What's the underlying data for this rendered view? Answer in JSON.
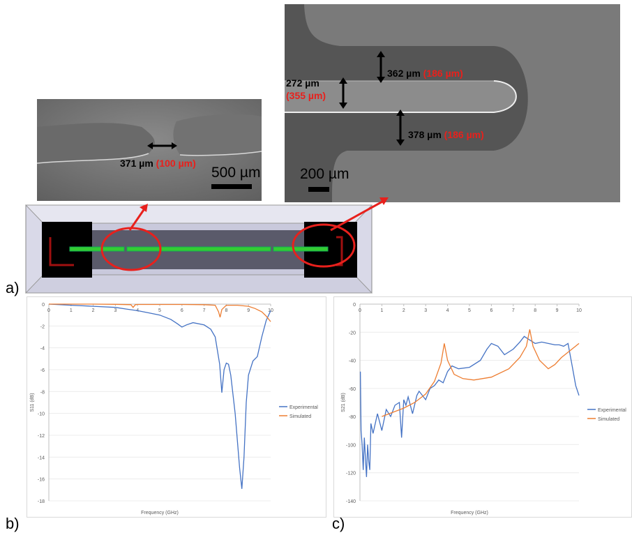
{
  "panel_labels": {
    "a": "a)",
    "b": "b)",
    "c": "c)"
  },
  "sem_left": {
    "gap_measure": "371 µm",
    "gap_design": "(100 µm)",
    "scale_bar": "500 µm"
  },
  "sem_right": {
    "top_measure": "362 µm",
    "top_design": "(186 µm)",
    "mid_measure": "272 µm",
    "mid_design": "(355 µm)",
    "bottom_measure": "378 µm",
    "bottom_design": "(186 µm)",
    "scale_bar": "200 µm"
  },
  "colors": {
    "experimental": "#4472C4",
    "simulated": "#ED7D31",
    "annotation_red": "#e8201c",
    "microstrip_green": "#33cc33"
  },
  "chart_data": [
    {
      "type": "line",
      "panel": "b)",
      "xlabel": "Frequency (GHz)",
      "ylabel": "S11 (dB)",
      "xlim": [
        0,
        10
      ],
      "ylim": [
        -18,
        0
      ],
      "x_ticks": [
        "0",
        "1",
        "2",
        "3",
        "4",
        "5",
        "6",
        "7",
        "8",
        "9",
        "10"
      ],
      "y_ticks": [
        "0",
        "-2",
        "-4",
        "-6",
        "-8",
        "-10",
        "-12",
        "-14",
        "-16",
        "-18"
      ],
      "x_axis_at": "top",
      "legend": "right",
      "series": [
        {
          "name": "Experimental",
          "x": [
            0,
            1,
            2,
            3,
            3.5,
            4,
            4.5,
            5,
            5.5,
            5.8,
            6,
            6.2,
            6.5,
            7,
            7.3,
            7.5,
            7.7,
            7.8,
            7.9,
            8.0,
            8.1,
            8.2,
            8.4,
            8.6,
            8.7,
            8.8,
            8.9,
            9.0,
            9.2,
            9.4,
            9.6,
            9.8,
            10
          ],
          "y": [
            0,
            -0.1,
            -0.2,
            -0.3,
            -0.45,
            -0.6,
            -0.8,
            -1.0,
            -1.4,
            -1.8,
            -2.1,
            -1.9,
            -1.7,
            -1.9,
            -2.3,
            -3.0,
            -5.5,
            -8.1,
            -6.0,
            -5.4,
            -5.5,
            -6.5,
            -10,
            -15,
            -16.9,
            -14,
            -9,
            -6.5,
            -5.2,
            -4.8,
            -3,
            -1.5,
            -0.6
          ]
        },
        {
          "name": "Simulated",
          "x": [
            0,
            1,
            2,
            3,
            3.7,
            3.8,
            3.9,
            4,
            5,
            6,
            7,
            7.5,
            7.65,
            7.72,
            7.8,
            8,
            8.5,
            9,
            9.3,
            9.6,
            9.8,
            10
          ],
          "y": [
            0,
            0,
            0,
            -0.02,
            -0.05,
            -0.3,
            -0.05,
            -0.03,
            -0.03,
            -0.03,
            -0.05,
            -0.1,
            -0.7,
            -1.2,
            -0.5,
            -0.1,
            -0.1,
            -0.2,
            -0.4,
            -0.7,
            -1.1,
            -1.6
          ]
        }
      ]
    },
    {
      "type": "line",
      "panel": "c)",
      "xlabel": "Frequency (GHz)",
      "ylabel": "S21 (dB)",
      "xlim": [
        0,
        10
      ],
      "ylim": [
        -140,
        0
      ],
      "x_ticks": [
        "0",
        "1",
        "2",
        "3",
        "4",
        "5",
        "6",
        "7",
        "8",
        "9",
        "10"
      ],
      "y_ticks": [
        "0",
        "-20",
        "-40",
        "-60",
        "-80",
        "-100",
        "-120",
        "-140"
      ],
      "x_axis_at": "top",
      "legend": "right",
      "series": [
        {
          "name": "Experimental",
          "x": [
            0.02,
            0.05,
            0.1,
            0.15,
            0.2,
            0.25,
            0.3,
            0.35,
            0.4,
            0.45,
            0.5,
            0.6,
            0.8,
            1.0,
            1.2,
            1.4,
            1.6,
            1.8,
            1.9,
            2.0,
            2.1,
            2.2,
            2.4,
            2.6,
            2.7,
            2.8,
            3.0,
            3.2,
            3.4,
            3.6,
            3.8,
            4.0,
            4.2,
            4.5,
            5.0,
            5.5,
            5.8,
            6.0,
            6.3,
            6.6,
            7.0,
            7.3,
            7.5,
            7.7,
            8.0,
            8.3,
            8.6,
            8.9,
            9.1,
            9.3,
            9.5,
            9.7,
            9.85,
            10
          ],
          "y": [
            -48,
            -90,
            -100,
            -118,
            -95,
            -110,
            -123,
            -100,
            -112,
            -118,
            -85,
            -92,
            -78,
            -90,
            -75,
            -80,
            -72,
            -70,
            -95,
            -68,
            -72,
            -66,
            -78,
            -65,
            -62,
            -64,
            -68,
            -60,
            -58,
            -54,
            -56,
            -48,
            -44,
            -46,
            -45,
            -40,
            -32,
            -28,
            -30,
            -36,
            -32,
            -27,
            -23,
            -25,
            -28,
            -27,
            -28,
            -29,
            -29,
            -30,
            -28,
            -45,
            -58,
            -65
          ]
        },
        {
          "name": "Simulated",
          "x": [
            1,
            1.5,
            2,
            2.5,
            3,
            3.4,
            3.7,
            3.85,
            4.0,
            4.3,
            4.7,
            5.2,
            6,
            6.8,
            7.3,
            7.6,
            7.75,
            7.9,
            8.2,
            8.6,
            8.9,
            9.2,
            9.6,
            10
          ],
          "y": [
            -80,
            -77,
            -74,
            -70,
            -64,
            -55,
            -42,
            -28,
            -40,
            -50,
            -53,
            -54,
            -52,
            -46,
            -38,
            -30,
            -18,
            -30,
            -40,
            -46,
            -43,
            -38,
            -33,
            -28
          ]
        }
      ]
    }
  ]
}
